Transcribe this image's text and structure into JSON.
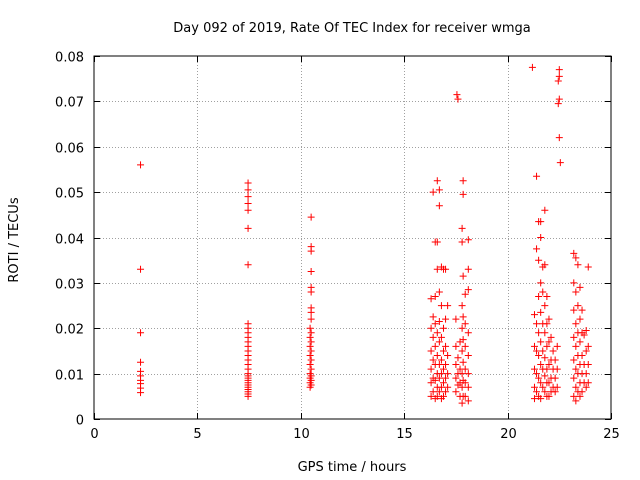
{
  "chart_data": {
    "type": "scatter",
    "title": "Day 092 of 2019, Rate Of TEC Index for receiver wmga",
    "xlabel": "GPS time / hours",
    "ylabel": "ROTI / TECUs",
    "xlim": [
      0,
      25
    ],
    "ylim": [
      0,
      0.08
    ],
    "xticks": [
      0,
      5,
      10,
      15,
      20,
      25
    ],
    "yticks": [
      0,
      0.01,
      0.02,
      0.03,
      0.04,
      0.05,
      0.06,
      0.07,
      0.08
    ],
    "xtick_labels": [
      "0",
      "5",
      "10",
      "15",
      "20",
      "25"
    ],
    "ytick_labels": [
      "0",
      "0.01",
      "0.02",
      "0.03",
      "0.04",
      "0.05",
      "0.06",
      "0.07",
      "0.08"
    ],
    "grid": true,
    "marker": "+",
    "color": "#ff0000",
    "series": [
      {
        "points": [
          [
            2.25,
            0.056
          ],
          [
            2.25,
            0.033
          ],
          [
            2.25,
            0.019
          ],
          [
            2.25,
            0.0125
          ],
          [
            2.25,
            0.0105
          ],
          [
            2.25,
            0.0095
          ],
          [
            2.25,
            0.0085
          ],
          [
            2.25,
            0.0078
          ],
          [
            2.25,
            0.0068
          ],
          [
            2.25,
            0.0058
          ],
          [
            7.45,
            0.052
          ],
          [
            7.45,
            0.0505
          ],
          [
            7.45,
            0.049
          ],
          [
            7.45,
            0.0475
          ],
          [
            7.45,
            0.046
          ],
          [
            7.45,
            0.042
          ],
          [
            7.45,
            0.034
          ],
          [
            7.45,
            0.021
          ],
          [
            7.45,
            0.02
          ],
          [
            7.45,
            0.019
          ],
          [
            7.45,
            0.018
          ],
          [
            7.45,
            0.017
          ],
          [
            7.45,
            0.016
          ],
          [
            7.45,
            0.015
          ],
          [
            7.45,
            0.014
          ],
          [
            7.45,
            0.013
          ],
          [
            7.45,
            0.012
          ],
          [
            7.45,
            0.011
          ],
          [
            7.45,
            0.01
          ],
          [
            7.45,
            0.0095
          ],
          [
            7.45,
            0.009
          ],
          [
            7.45,
            0.0085
          ],
          [
            7.45,
            0.008
          ],
          [
            7.45,
            0.0075
          ],
          [
            7.45,
            0.007
          ],
          [
            7.45,
            0.0065
          ],
          [
            7.45,
            0.006
          ],
          [
            7.45,
            0.0055
          ],
          [
            7.45,
            0.005
          ],
          [
            10.5,
            0.0445
          ],
          [
            10.5,
            0.038
          ],
          [
            10.5,
            0.037
          ],
          [
            10.5,
            0.0325
          ],
          [
            10.5,
            0.029
          ],
          [
            10.5,
            0.028
          ],
          [
            10.5,
            0.0245
          ],
          [
            10.5,
            0.0235
          ],
          [
            10.5,
            0.022
          ],
          [
            10.45,
            0.02
          ],
          [
            10.5,
            0.019
          ],
          [
            10.45,
            0.018
          ],
          [
            10.5,
            0.017
          ],
          [
            10.45,
            0.016
          ],
          [
            10.5,
            0.015
          ],
          [
            10.45,
            0.014
          ],
          [
            10.5,
            0.013
          ],
          [
            10.45,
            0.012
          ],
          [
            10.5,
            0.011
          ],
          [
            10.45,
            0.01
          ],
          [
            10.5,
            0.0095
          ],
          [
            10.45,
            0.009
          ],
          [
            10.5,
            0.0085
          ],
          [
            10.45,
            0.008
          ],
          [
            10.5,
            0.0075
          ],
          [
            10.45,
            0.007
          ],
          [
            16.3,
            0.0265
          ],
          [
            16.3,
            0.02
          ],
          [
            16.3,
            0.015
          ],
          [
            16.3,
            0.011
          ],
          [
            16.3,
            0.008
          ],
          [
            16.3,
            0.005
          ],
          [
            16.4,
            0.05
          ],
          [
            16.4,
            0.0225
          ],
          [
            16.4,
            0.018
          ],
          [
            16.4,
            0.013
          ],
          [
            16.4,
            0.009
          ],
          [
            16.4,
            0.006
          ],
          [
            16.5,
            0.039
          ],
          [
            16.5,
            0.027
          ],
          [
            16.5,
            0.021
          ],
          [
            16.5,
            0.016
          ],
          [
            16.5,
            0.012
          ],
          [
            16.5,
            0.0085
          ],
          [
            16.5,
            0.0045
          ],
          [
            16.6,
            0.0525
          ],
          [
            16.6,
            0.039
          ],
          [
            16.6,
            0.033
          ],
          [
            16.6,
            0.019
          ],
          [
            16.6,
            0.014
          ],
          [
            16.6,
            0.01
          ],
          [
            16.6,
            0.007
          ],
          [
            16.6,
            0.005
          ],
          [
            16.7,
            0.0505
          ],
          [
            16.7,
            0.047
          ],
          [
            16.7,
            0.028
          ],
          [
            16.7,
            0.0215
          ],
          [
            16.7,
            0.017
          ],
          [
            16.7,
            0.012
          ],
          [
            16.7,
            0.009
          ],
          [
            16.7,
            0.006
          ],
          [
            16.8,
            0.0335
          ],
          [
            16.8,
            0.025
          ],
          [
            16.8,
            0.018
          ],
          [
            16.8,
            0.013
          ],
          [
            16.8,
            0.01
          ],
          [
            16.8,
            0.007
          ],
          [
            16.8,
            0.0045
          ],
          [
            16.9,
            0.033
          ],
          [
            16.9,
            0.02
          ],
          [
            16.9,
            0.015
          ],
          [
            16.9,
            0.011
          ],
          [
            16.9,
            0.008
          ],
          [
            16.9,
            0.005
          ],
          [
            17.0,
            0.033
          ],
          [
            17.0,
            0.022
          ],
          [
            17.0,
            0.016
          ],
          [
            17.0,
            0.012
          ],
          [
            17.0,
            0.009
          ],
          [
            17.0,
            0.006
          ],
          [
            17.1,
            0.025
          ],
          [
            17.1,
            0.014
          ],
          [
            17.1,
            0.01
          ],
          [
            17.1,
            0.007
          ],
          [
            17.55,
            0.0715
          ],
          [
            17.6,
            0.0705
          ],
          [
            17.5,
            0.022
          ],
          [
            17.5,
            0.016
          ],
          [
            17.5,
            0.012
          ],
          [
            17.5,
            0.009
          ],
          [
            17.5,
            0.006
          ],
          [
            17.6,
            0.0135
          ],
          [
            17.6,
            0.01
          ],
          [
            17.6,
            0.0075
          ],
          [
            17.7,
            0.017
          ],
          [
            17.7,
            0.011
          ],
          [
            17.7,
            0.008
          ],
          [
            17.7,
            0.005
          ],
          [
            17.8,
            0.042
          ],
          [
            17.8,
            0.039
          ],
          [
            17.8,
            0.025
          ],
          [
            17.8,
            0.02
          ],
          [
            17.8,
            0.015
          ],
          [
            17.8,
            0.01
          ],
          [
            17.8,
            0.007
          ],
          [
            17.8,
            0.0035
          ],
          [
            17.85,
            0.0525
          ],
          [
            17.85,
            0.0495
          ],
          [
            17.85,
            0.0315
          ],
          [
            17.85,
            0.0225
          ],
          [
            17.85,
            0.0175
          ],
          [
            17.85,
            0.0125
          ],
          [
            17.85,
            0.0085
          ],
          [
            17.85,
            0.005
          ],
          [
            17.95,
            0.0275
          ],
          [
            17.95,
            0.021
          ],
          [
            17.95,
            0.016
          ],
          [
            17.95,
            0.011
          ],
          [
            17.95,
            0.008
          ],
          [
            17.95,
            0.005
          ],
          [
            18.1,
            0.0395
          ],
          [
            18.1,
            0.033
          ],
          [
            18.1,
            0.0285
          ],
          [
            18.1,
            0.019
          ],
          [
            18.1,
            0.014
          ],
          [
            18.1,
            0.01
          ],
          [
            18.1,
            0.007
          ],
          [
            18.1,
            0.004
          ],
          [
            21.2,
            0.0775
          ],
          [
            21.3,
            0.023
          ],
          [
            21.3,
            0.016
          ],
          [
            21.3,
            0.011
          ],
          [
            21.3,
            0.007
          ],
          [
            21.3,
            0.0045
          ],
          [
            21.4,
            0.0535
          ],
          [
            21.4,
            0.0375
          ],
          [
            21.4,
            0.021
          ],
          [
            21.4,
            0.015
          ],
          [
            21.4,
            0.01
          ],
          [
            21.4,
            0.006
          ],
          [
            21.5,
            0.0435
          ],
          [
            21.5,
            0.035
          ],
          [
            21.5,
            0.027
          ],
          [
            21.5,
            0.019
          ],
          [
            21.5,
            0.014
          ],
          [
            21.5,
            0.009
          ],
          [
            21.5,
            0.005
          ],
          [
            21.6,
            0.0435
          ],
          [
            21.6,
            0.04
          ],
          [
            21.6,
            0.03
          ],
          [
            21.6,
            0.0235
          ],
          [
            21.6,
            0.017
          ],
          [
            21.6,
            0.012
          ],
          [
            21.6,
            0.008
          ],
          [
            21.6,
            0.0045
          ],
          [
            21.7,
            0.0335
          ],
          [
            21.7,
            0.028
          ],
          [
            21.7,
            0.021
          ],
          [
            21.7,
            0.015
          ],
          [
            21.7,
            0.011
          ],
          [
            21.7,
            0.007
          ],
          [
            21.8,
            0.046
          ],
          [
            21.8,
            0.034
          ],
          [
            21.8,
            0.025
          ],
          [
            21.8,
            0.019
          ],
          [
            21.8,
            0.0135
          ],
          [
            21.8,
            0.0095
          ],
          [
            21.8,
            0.006
          ],
          [
            21.9,
            0.027
          ],
          [
            21.9,
            0.021
          ],
          [
            21.9,
            0.016
          ],
          [
            21.9,
            0.011
          ],
          [
            21.9,
            0.008
          ],
          [
            21.9,
            0.005
          ],
          [
            22.0,
            0.022
          ],
          [
            22.0,
            0.017
          ],
          [
            22.0,
            0.012
          ],
          [
            22.0,
            0.008
          ],
          [
            22.0,
            0.005
          ],
          [
            22.1,
            0.018
          ],
          [
            22.1,
            0.013
          ],
          [
            22.1,
            0.009
          ],
          [
            22.1,
            0.006
          ],
          [
            22.2,
            0.015
          ],
          [
            22.2,
            0.011
          ],
          [
            22.2,
            0.007
          ],
          [
            22.3,
            0.013
          ],
          [
            22.3,
            0.009
          ],
          [
            22.3,
            0.006
          ],
          [
            22.4,
            0.016
          ],
          [
            22.4,
            0.011
          ],
          [
            22.4,
            0.007
          ],
          [
            22.5,
            0.077
          ],
          [
            22.5,
            0.0755
          ],
          [
            22.45,
            0.0745
          ],
          [
            22.5,
            0.0705
          ],
          [
            22.45,
            0.0695
          ],
          [
            22.5,
            0.062
          ],
          [
            22.55,
            0.0565
          ],
          [
            23.2,
            0.0365
          ],
          [
            23.2,
            0.03
          ],
          [
            23.2,
            0.024
          ],
          [
            23.2,
            0.018
          ],
          [
            23.2,
            0.013
          ],
          [
            23.2,
            0.009
          ],
          [
            23.2,
            0.005
          ],
          [
            23.3,
            0.0355
          ],
          [
            23.3,
            0.028
          ],
          [
            23.3,
            0.021
          ],
          [
            23.3,
            0.016
          ],
          [
            23.3,
            0.011
          ],
          [
            23.3,
            0.007
          ],
          [
            23.3,
            0.004
          ],
          [
            23.4,
            0.034
          ],
          [
            23.4,
            0.025
          ],
          [
            23.4,
            0.019
          ],
          [
            23.4,
            0.014
          ],
          [
            23.4,
            0.01
          ],
          [
            23.4,
            0.006
          ],
          [
            23.5,
            0.029
          ],
          [
            23.5,
            0.022
          ],
          [
            23.5,
            0.017
          ],
          [
            23.5,
            0.012
          ],
          [
            23.5,
            0.008
          ],
          [
            23.5,
            0.005
          ],
          [
            23.6,
            0.024
          ],
          [
            23.6,
            0.019
          ],
          [
            23.6,
            0.014
          ],
          [
            23.6,
            0.01
          ],
          [
            23.6,
            0.006
          ],
          [
            23.7,
            0.0185
          ],
          [
            23.7,
            0.012
          ],
          [
            23.7,
            0.008
          ],
          [
            23.8,
            0.0195
          ],
          [
            23.8,
            0.015
          ],
          [
            23.8,
            0.01
          ],
          [
            23.8,
            0.007
          ],
          [
            23.9,
            0.0335
          ],
          [
            23.9,
            0.016
          ],
          [
            23.9,
            0.012
          ],
          [
            23.9,
            0.008
          ]
        ]
      }
    ]
  }
}
